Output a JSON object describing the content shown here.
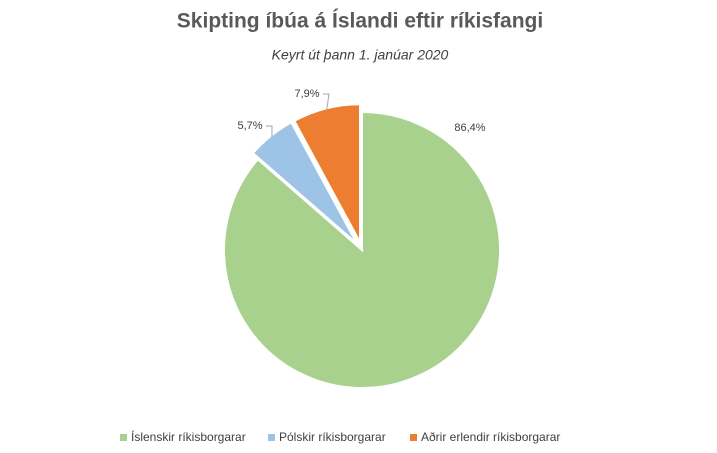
{
  "chart_data": {
    "type": "pie",
    "title": "Skipting íbúa á Íslandi eftir ríkisfangi",
    "subtitle": "Keyrt út þann 1. janúar 2020",
    "categories": [
      "Íslenskir ríkisborgarar",
      "Pólskir ríkisborgarar",
      "Aðrir erlendir ríkisborgarar"
    ],
    "values": [
      86.4,
      5.7,
      7.9
    ],
    "value_labels": [
      "86,4%",
      "5,7%",
      "7,9%"
    ],
    "colors": [
      "#a9d18e",
      "#9dc3e6",
      "#ed7d31"
    ],
    "legend": "bottom"
  }
}
